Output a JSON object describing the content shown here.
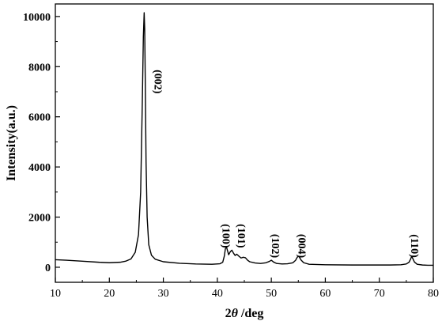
{
  "chart_data": {
    "type": "line",
    "xlabel_prefix": "2",
    "xlabel_symbol": "θ",
    "xlabel_suffix": " /deg",
    "ylabel": "Intensity(a.u.)",
    "xlim": [
      10,
      80
    ],
    "ylim": [
      -600,
      10500
    ],
    "x_ticks": [
      10,
      20,
      30,
      40,
      50,
      60,
      70,
      80
    ],
    "y_ticks": [
      0,
      2000,
      4000,
      6000,
      8000,
      10000
    ],
    "grid": false,
    "legend": "none",
    "series": [
      {
        "color": "#000000",
        "x": [
          10,
          12,
          15,
          18,
          20,
          22,
          23,
          24,
          24.8,
          25.4,
          25.8,
          26.1,
          26.3,
          26.45,
          26.55,
          26.65,
          26.8,
          27.0,
          27.3,
          27.8,
          28.5,
          30,
          33,
          36,
          39,
          40.5,
          41.0,
          41.3,
          41.5,
          41.7,
          41.9,
          42.1,
          42.4,
          42.7,
          43.0,
          43.3,
          43.6,
          44.0,
          44.4,
          44.8,
          45.2,
          45.6,
          46.0,
          47,
          48,
          49,
          49.6,
          50.0,
          50.4,
          51,
          52,
          53,
          54.0,
          54.5,
          54.8,
          55.0,
          55.2,
          55.5,
          56.0,
          57,
          60,
          65,
          70,
          72,
          74,
          75.0,
          75.5,
          75.8,
          76.0,
          76.2,
          76.5,
          77,
          78,
          79,
          80
        ],
        "y": [
          300,
          280,
          240,
          200,
          180,
          200,
          240,
          330,
          600,
          1300,
          3000,
          6500,
          9200,
          10150,
          9500,
          7500,
          4200,
          2000,
          900,
          480,
          320,
          220,
          160,
          130,
          120,
          140,
          200,
          450,
          750,
          800,
          650,
          500,
          620,
          680,
          560,
          470,
          520,
          440,
          370,
          400,
          380,
          280,
          220,
          170,
          150,
          180,
          230,
          280,
          210,
          150,
          130,
          140,
          180,
          280,
          400,
          440,
          400,
          290,
          180,
          120,
          100,
          90,
          90,
          90,
          100,
          130,
          200,
          330,
          430,
          350,
          210,
          120,
          90,
          80,
          80
        ]
      }
    ],
    "annotations": [
      {
        "text": "(002)",
        "x": 28.4,
        "y": 7400
      },
      {
        "text": "(100)",
        "x": 41.0,
        "y": 1250
      },
      {
        "text": "(101)",
        "x": 43.8,
        "y": 1250
      },
      {
        "text": "(102)",
        "x": 50.1,
        "y": 850
      },
      {
        "text": "(004)",
        "x": 55.0,
        "y": 850
      },
      {
        "text": "(110)",
        "x": 75.9,
        "y": 850
      }
    ]
  }
}
